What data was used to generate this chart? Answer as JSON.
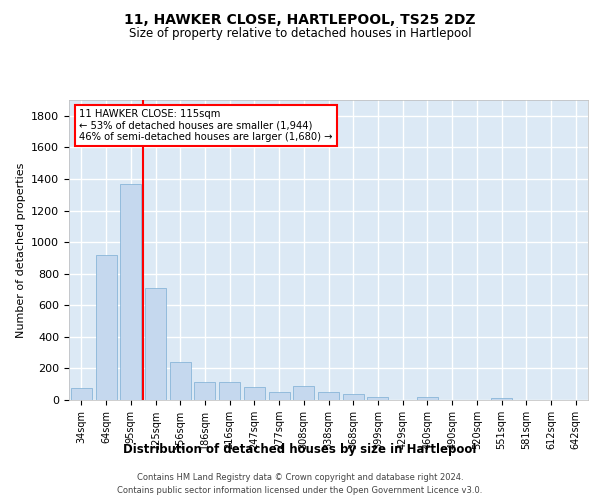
{
  "title": "11, HAWKER CLOSE, HARTLEPOOL, TS25 2DZ",
  "subtitle": "Size of property relative to detached houses in Hartlepool",
  "xlabel": "Distribution of detached houses by size in Hartlepool",
  "ylabel": "Number of detached properties",
  "bar_color": "#c5d8ee",
  "bar_edge_color": "#7aadd4",
  "background_color": "#dce9f5",
  "grid_color": "#ffffff",
  "categories": [
    "34sqm",
    "64sqm",
    "95sqm",
    "125sqm",
    "156sqm",
    "186sqm",
    "216sqm",
    "247sqm",
    "277sqm",
    "308sqm",
    "338sqm",
    "368sqm",
    "399sqm",
    "429sqm",
    "460sqm",
    "490sqm",
    "520sqm",
    "551sqm",
    "581sqm",
    "612sqm",
    "642sqm"
  ],
  "values": [
    75,
    920,
    1370,
    710,
    240,
    115,
    115,
    80,
    50,
    90,
    50,
    35,
    20,
    0,
    20,
    0,
    0,
    15,
    0,
    0,
    0
  ],
  "ylim": [
    0,
    1900
  ],
  "yticks": [
    0,
    200,
    400,
    600,
    800,
    1000,
    1200,
    1400,
    1600,
    1800
  ],
  "vline_pos": 2.5,
  "annotation_title": "11 HAWKER CLOSE: 115sqm",
  "annotation_line2": "← 53% of detached houses are smaller (1,944)",
  "annotation_line3": "46% of semi-detached houses are larger (1,680) →",
  "footer_line1": "Contains HM Land Registry data © Crown copyright and database right 2024.",
  "footer_line2": "Contains public sector information licensed under the Open Government Licence v3.0."
}
